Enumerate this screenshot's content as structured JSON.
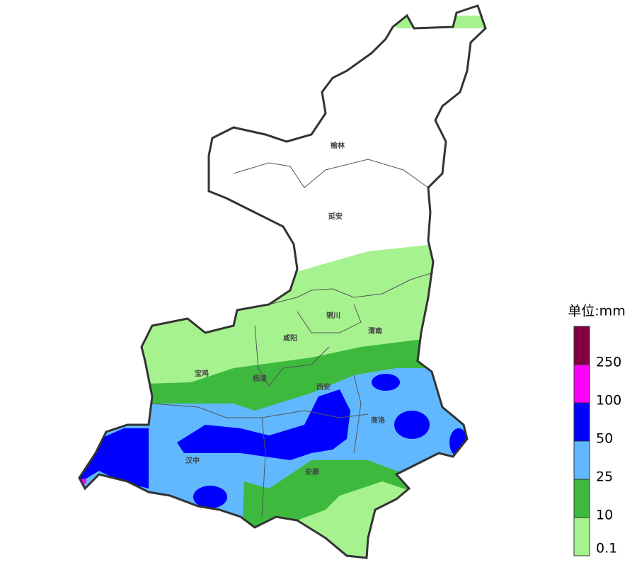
{
  "legend": {
    "title": "单位:mm",
    "levels": [
      {
        "label": "0.1",
        "color": "#a6f28f"
      },
      {
        "label": "10",
        "color": "#3dba3d"
      },
      {
        "label": "25",
        "color": "#61b8ff"
      },
      {
        "label": "50",
        "color": "#0000fe"
      },
      {
        "label": "100",
        "color": "#fa00fa"
      },
      {
        "label": "250",
        "color": "#800040"
      }
    ]
  },
  "cities": [
    "榆林",
    "延安",
    "铜川",
    "渭南",
    "咸阳",
    "宝鸡",
    "杨凌",
    "西安",
    "商洛",
    "汉中",
    "安康"
  ]
}
